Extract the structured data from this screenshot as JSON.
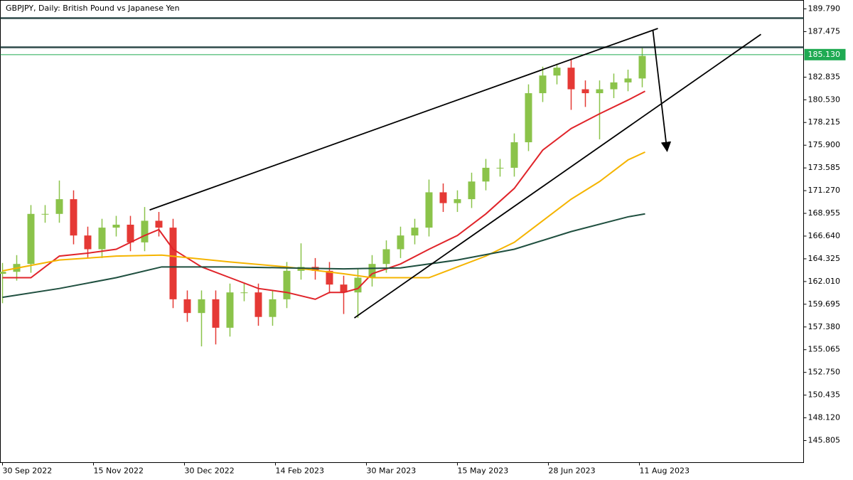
{
  "chart_data": {
    "type": "candlestick",
    "title": "GBPJPY, Daily:  British Pound vs Japanese Yen",
    "x": [
      0,
      5,
      10,
      15,
      20,
      25,
      30,
      35,
      40,
      45,
      50,
      55,
      60,
      65,
      70,
      75,
      80,
      85,
      90,
      95,
      100,
      105,
      110,
      115,
      120,
      125,
      130,
      135,
      140,
      145,
      150,
      155,
      160,
      165,
      170,
      175,
      180,
      185,
      190,
      195,
      200,
      205,
      210,
      215,
      220,
      225
    ],
    "open": [
      162.8,
      163.0,
      163.8,
      168.9,
      168.9,
      170.4,
      166.7,
      165.3,
      167.5,
      167.8,
      166.0,
      168.2,
      167.5,
      160.2,
      158.8,
      160.2,
      157.3,
      160.9,
      160.9,
      158.4,
      160.2,
      163.1,
      163.5,
      163.1,
      161.7,
      160.9,
      162.4,
      163.8,
      165.3,
      166.7,
      167.5,
      171.1,
      170.0,
      170.4,
      172.2,
      173.6,
      173.6,
      176.2,
      181.2,
      183.0,
      183.8,
      181.6,
      181.2,
      181.6,
      182.3,
      182.7
    ],
    "high": [
      163.9,
      164.7,
      169.8,
      169.8,
      172.3,
      171.3,
      167.6,
      168.4,
      168.7,
      168.7,
      169.6,
      169.1,
      168.4,
      161.1,
      161.1,
      161.1,
      161.8,
      161.8,
      161.8,
      161.1,
      164.0,
      165.9,
      164.4,
      164.0,
      162.6,
      163.3,
      164.7,
      166.2,
      167.6,
      168.4,
      172.4,
      172.0,
      171.3,
      173.1,
      174.5,
      174.5,
      177.1,
      182.1,
      183.9,
      184.2,
      184.7,
      182.5,
      182.5,
      183.2,
      183.6,
      185.9
    ],
    "low": [
      159.8,
      162.1,
      162.9,
      168.0,
      168.0,
      165.8,
      164.4,
      164.4,
      166.6,
      165.1,
      165.1,
      166.6,
      159.3,
      157.9,
      155.4,
      155.6,
      156.4,
      160.0,
      157.5,
      157.5,
      159.3,
      162.2,
      162.2,
      160.8,
      158.7,
      158.3,
      161.5,
      162.9,
      164.4,
      165.8,
      166.6,
      169.1,
      169.1,
      169.5,
      171.3,
      172.7,
      172.7,
      175.3,
      180.3,
      182.1,
      179.5,
      179.8,
      176.5,
      180.7,
      181.4,
      181.8
    ],
    "close": [
      163.0,
      163.8,
      168.9,
      168.9,
      170.4,
      166.7,
      165.3,
      167.5,
      167.8,
      166.0,
      168.2,
      167.5,
      160.2,
      158.8,
      160.2,
      157.3,
      160.9,
      160.9,
      158.4,
      160.2,
      163.1,
      163.5,
      163.1,
      161.7,
      160.9,
      162.4,
      163.8,
      165.3,
      166.7,
      167.5,
      171.1,
      170.0,
      170.4,
      172.2,
      173.6,
      173.6,
      176.2,
      181.2,
      183.0,
      183.8,
      181.6,
      181.2,
      181.6,
      182.3,
      182.7,
      185.0
    ],
    "up_color": "#8bc34a",
    "down_color": "#e53935",
    "overlays": [
      {
        "color": "#e0242a",
        "x": [
          0,
          10,
          20,
          30,
          40,
          50,
          55,
          60,
          70,
          80,
          90,
          100,
          110,
          115,
          120,
          125,
          130,
          140,
          150,
          160,
          170,
          180,
          190,
          200,
          210,
          220,
          226
        ],
        "values": [
          162.4,
          162.4,
          164.6,
          164.9,
          165.3,
          166.7,
          167.3,
          165.3,
          163.5,
          162.4,
          161.3,
          160.9,
          160.2,
          160.9,
          160.9,
          161.3,
          162.8,
          163.8,
          165.3,
          166.7,
          168.9,
          171.5,
          175.4,
          177.6,
          179.1,
          180.5,
          181.4
        ]
      },
      {
        "color": "#f5b400",
        "x": [
          0,
          20,
          40,
          56,
          80,
          100,
          120,
          130,
          150,
          160,
          170,
          180,
          190,
          200,
          210,
          220,
          226
        ],
        "values": [
          163.1,
          164.2,
          164.6,
          164.7,
          164.0,
          163.5,
          162.8,
          162.4,
          162.4,
          163.5,
          164.6,
          166.0,
          168.2,
          170.4,
          172.2,
          174.4,
          175.2
        ]
      },
      {
        "color": "#1f4f3f",
        "x": [
          0,
          20,
          40,
          56,
          80,
          100,
          120,
          140,
          160,
          180,
          200,
          220,
          226
        ],
        "values": [
          160.4,
          161.3,
          162.4,
          163.5,
          163.5,
          163.4,
          163.3,
          163.4,
          164.2,
          165.3,
          167.1,
          168.6,
          168.9
        ]
      }
    ],
    "trend_lines": [
      {
        "x": [
          51.75,
          230.5
        ],
        "y": [
          169.3,
          187.8
        ]
      },
      {
        "x": [
          123.75,
          266.75
        ],
        "y": [
          158.3,
          187.2
        ]
      }
    ],
    "arrow": {
      "x": [
        228.75,
        233.75
      ],
      "y": [
        187.6,
        175.3
      ]
    },
    "levels": [
      188.85,
      185.88
    ],
    "current_price": {
      "value": 185.13,
      "label": "185.130"
    },
    "xlim": [
      -0.75,
      281.75
    ],
    "ylim": [
      143.56,
      190.66
    ],
    "xticks": [
      {
        "value": 0,
        "label": "30 Sep 2022"
      },
      {
        "value": 32,
        "label": "15 Nov 2022"
      },
      {
        "value": 64,
        "label": "30 Dec 2022"
      },
      {
        "value": 96,
        "label": "14 Feb 2023"
      },
      {
        "value": 128,
        "label": "30 Mar 2023"
      },
      {
        "value": 160,
        "label": "15 May 2023"
      },
      {
        "value": 192,
        "label": "28 Jun 2023"
      },
      {
        "value": 224,
        "label": "11 Aug 2023"
      }
    ],
    "yticks": [
      {
        "value": 189.79,
        "label": "189.790"
      },
      {
        "value": 187.475,
        "label": "187.475"
      },
      {
        "value": 182.835,
        "label": "182.835"
      },
      {
        "value": 180.53,
        "label": "180.530"
      },
      {
        "value": 178.215,
        "label": "178.215"
      },
      {
        "value": 175.9,
        "label": "175.900"
      },
      {
        "value": 173.585,
        "label": "173.585"
      },
      {
        "value": 171.27,
        "label": "171.270"
      },
      {
        "value": 168.955,
        "label": "168.955"
      },
      {
        "value": 166.64,
        "label": "166.640"
      },
      {
        "value": 164.325,
        "label": "164.325"
      },
      {
        "value": 162.01,
        "label": "162.010"
      },
      {
        "value": 159.695,
        "label": "159.695"
      },
      {
        "value": 157.38,
        "label": "157.380"
      },
      {
        "value": 155.065,
        "label": "155.065"
      },
      {
        "value": 152.75,
        "label": "152.750"
      },
      {
        "value": 150.435,
        "label": "150.435"
      },
      {
        "value": 148.12,
        "label": "148.120"
      },
      {
        "value": 145.805,
        "label": "145.805"
      }
    ],
    "grid": false
  }
}
